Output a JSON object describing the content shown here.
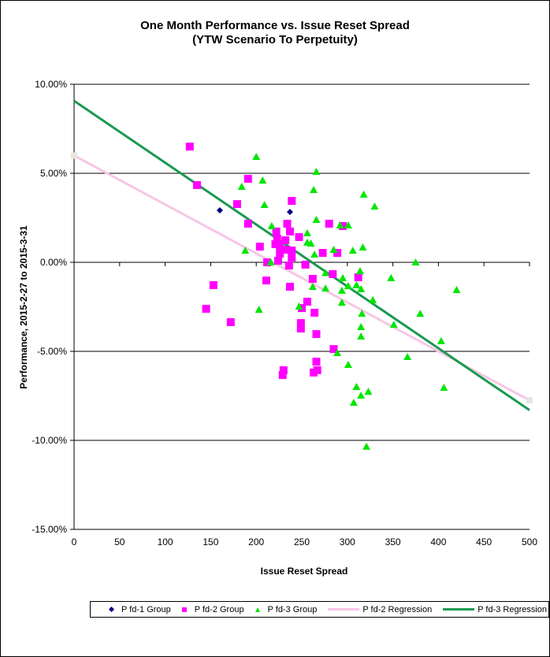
{
  "chart_data": {
    "type": "scatter",
    "title": [
      "One Month Performance vs. Issue Reset Spread",
      "(YTW Scenario To Perpetuity)"
    ],
    "xlabel": "Issue Reset Spread",
    "ylabel": "Performance, 2015-2-27  to 2015-3-31",
    "xlim": [
      0,
      500
    ],
    "ylim": [
      -15,
      10
    ],
    "x_ticks": [
      0,
      50,
      100,
      150,
      200,
      250,
      300,
      350,
      400,
      450,
      500
    ],
    "y_ticks": [
      10,
      5,
      0,
      -5,
      -10,
      -15
    ],
    "y_tick_labels": [
      "10.00%",
      "5.00%",
      "0.00%",
      "-5.00%",
      "-10.00%",
      "-15.00%"
    ],
    "gridlines": "horizontal",
    "legend_position": "bottom",
    "series": [
      {
        "name": "Pfd-1 Group",
        "marker": "diamond",
        "color": "#000080",
        "points": [
          [
            160,
            2.92
          ],
          [
            237,
            2.83
          ]
        ]
      },
      {
        "name": "Pfd-2 Group",
        "marker": "square",
        "color": "#ff00ff",
        "points": [
          [
            127,
            6.5
          ],
          [
            135,
            4.34
          ],
          [
            191,
            4.69
          ],
          [
            179,
            3.27
          ],
          [
            239,
            3.45
          ],
          [
            191,
            2.17
          ],
          [
            234,
            2.17
          ],
          [
            237,
            1.73
          ],
          [
            247,
            1.42
          ],
          [
            204,
            0.88
          ],
          [
            222,
            1.73
          ],
          [
            223,
            1.33
          ],
          [
            232,
            1.24
          ],
          [
            221,
            1.02
          ],
          [
            226,
            0.93
          ],
          [
            233,
            0.71
          ],
          [
            239,
            0.66
          ],
          [
            226,
            0.49
          ],
          [
            239,
            0.27
          ],
          [
            273,
            0.53
          ],
          [
            289,
            0.53
          ],
          [
            280,
            2.17
          ],
          [
            295,
            2.04
          ],
          [
            224,
            0.09
          ],
          [
            212,
            0.0
          ],
          [
            236,
            -0.18
          ],
          [
            254,
            -0.13
          ],
          [
            262,
            -0.93
          ],
          [
            284,
            -0.66
          ],
          [
            211,
            -1.02
          ],
          [
            237,
            -1.37
          ],
          [
            312,
            -0.84
          ],
          [
            256,
            -2.21
          ],
          [
            250,
            -2.57
          ],
          [
            264,
            -2.83
          ],
          [
            172,
            -3.36
          ],
          [
            249,
            -3.41
          ],
          [
            249,
            -3.72
          ],
          [
            266,
            -4.03
          ],
          [
            285,
            -4.87
          ],
          [
            266,
            -5.58
          ],
          [
            267,
            -6.06
          ],
          [
            263,
            -6.19
          ],
          [
            230,
            -6.06
          ],
          [
            229,
            -6.33
          ],
          [
            153,
            -1.28
          ],
          [
            145,
            -2.61
          ]
        ]
      },
      {
        "name": "Pfd-3 Group",
        "marker": "triangle",
        "color": "#00e600",
        "points": [
          [
            200,
            5.93
          ],
          [
            207,
            4.6
          ],
          [
            184,
            4.25
          ],
          [
            209,
            3.23
          ],
          [
            217,
            2.04
          ],
          [
            188,
            0.66
          ],
          [
            266,
            5.09
          ],
          [
            263,
            4.07
          ],
          [
            318,
            3.81
          ],
          [
            330,
            3.14
          ],
          [
            266,
            2.39
          ],
          [
            292,
            2.08
          ],
          [
            301,
            2.08
          ],
          [
            256,
            1.64
          ],
          [
            256,
            1.11
          ],
          [
            260,
            1.06
          ],
          [
            285,
            0.71
          ],
          [
            306,
            0.66
          ],
          [
            317,
            0.84
          ],
          [
            264,
            0.44
          ],
          [
            216,
            0.0
          ],
          [
            276,
            -0.6
          ],
          [
            295,
            -0.88
          ],
          [
            262,
            -1.37
          ],
          [
            276,
            -1.46
          ],
          [
            301,
            -1.33
          ],
          [
            310,
            -1.28
          ],
          [
            314,
            -0.49
          ],
          [
            315,
            -1.5
          ],
          [
            294,
            -1.59
          ],
          [
            328,
            -2.12
          ],
          [
            294,
            -2.26
          ],
          [
            203,
            -2.66
          ],
          [
            247,
            -2.48
          ],
          [
            316,
            -2.88
          ],
          [
            315,
            -3.63
          ],
          [
            315,
            -4.16
          ],
          [
            289,
            -5.09
          ],
          [
            301,
            -5.75
          ],
          [
            310,
            -6.99
          ],
          [
            323,
            -7.26
          ],
          [
            315,
            -7.48
          ],
          [
            307,
            -7.88
          ],
          [
            321,
            -10.35
          ],
          [
            375,
            0.0
          ],
          [
            348,
            -0.88
          ],
          [
            420,
            -1.55
          ],
          [
            380,
            -2.88
          ],
          [
            351,
            -3.5
          ],
          [
            403,
            -4.42
          ],
          [
            366,
            -5.31
          ],
          [
            406,
            -7.04
          ]
        ]
      },
      {
        "name": "Pfd-2 Regression",
        "type": "line",
        "color": "#f6c6e6",
        "points": [
          [
            0,
            6.0
          ],
          [
            500,
            -7.75
          ]
        ]
      },
      {
        "name": "Pfd-3 Regression",
        "type": "line",
        "color": "#1a9a50",
        "points": [
          [
            0,
            9.07
          ],
          [
            500,
            -8.3
          ]
        ]
      }
    ]
  },
  "legend": {
    "items": [
      {
        "label": "P fd-1 Group"
      },
      {
        "label": "P fd-2 Group"
      },
      {
        "label": "P fd-3 Group"
      },
      {
        "label": "P fd-2 Regression"
      },
      {
        "label": "P fd-3 Regression"
      }
    ]
  }
}
